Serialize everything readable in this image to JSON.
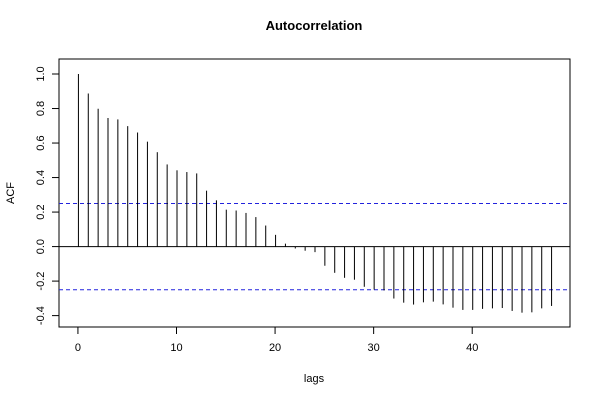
{
  "chart_data": {
    "type": "bar",
    "title": "Autocorrelation",
    "xlabel": "lags",
    "ylabel": "ACF",
    "x_ticks": [
      0,
      10,
      20,
      30,
      40
    ],
    "y_ticks": [
      -0.4,
      -0.2,
      0.0,
      0.2,
      0.4,
      0.6,
      0.8,
      1.0
    ],
    "y_tick_labels": [
      "-0.4",
      "-0.2",
      "0.0",
      "0.2",
      "0.4",
      "0.6",
      "0.8",
      "1.0"
    ],
    "xlim": [
      -1.92,
      49.92
    ],
    "ylim": [
      -0.466,
      1.087
    ],
    "confidence_bound": 0.25,
    "lags": [
      0,
      1,
      2,
      3,
      4,
      5,
      6,
      7,
      8,
      9,
      10,
      11,
      12,
      13,
      14,
      15,
      16,
      17,
      18,
      19,
      20,
      21,
      22,
      23,
      24,
      25,
      26,
      27,
      28,
      29,
      30,
      31,
      32,
      33,
      34,
      35,
      36,
      37,
      38,
      39,
      40,
      41,
      42,
      43,
      44,
      45,
      46,
      47,
      48
    ],
    "values": [
      1.0,
      0.887,
      0.799,
      0.745,
      0.737,
      0.698,
      0.661,
      0.608,
      0.547,
      0.476,
      0.442,
      0.432,
      0.424,
      0.324,
      0.268,
      0.214,
      0.209,
      0.195,
      0.171,
      0.122,
      0.068,
      0.017,
      -0.011,
      -0.024,
      -0.032,
      -0.111,
      -0.152,
      -0.181,
      -0.192,
      -0.233,
      -0.249,
      -0.254,
      -0.301,
      -0.325,
      -0.336,
      -0.323,
      -0.319,
      -0.335,
      -0.354,
      -0.367,
      -0.367,
      -0.361,
      -0.358,
      -0.356,
      -0.373,
      -0.383,
      -0.381,
      -0.358,
      -0.344
    ]
  },
  "colors": {
    "spike": "#000000",
    "zero_line": "#000000",
    "confidence_line": "#2222dd",
    "frame": "#000000"
  }
}
